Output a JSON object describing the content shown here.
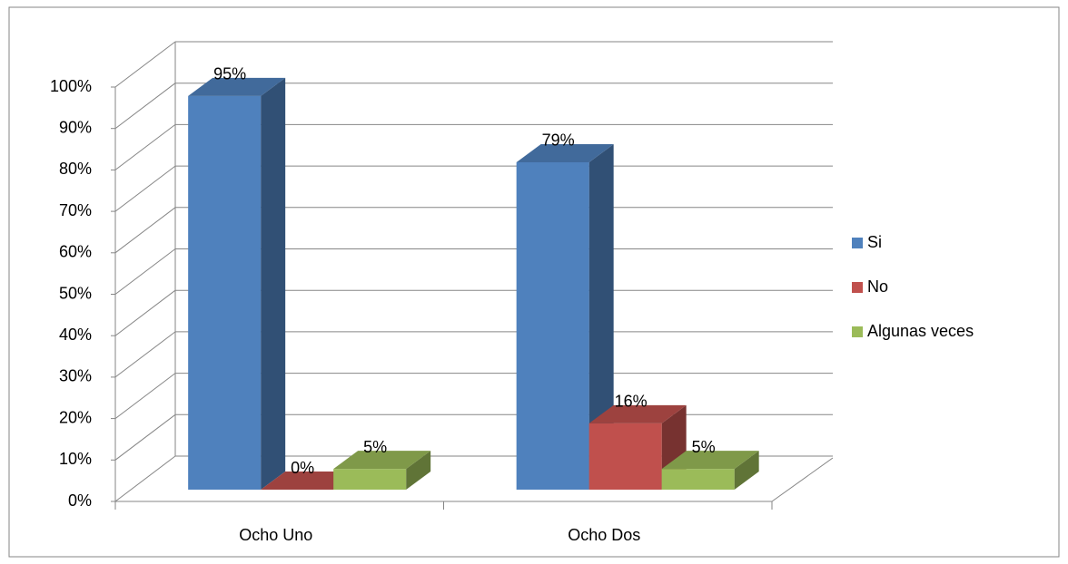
{
  "chart_data": {
    "type": "bar3d",
    "categories": [
      "Ocho Uno",
      "Ocho Dos"
    ],
    "series": [
      {
        "name": "Si",
        "color": "#4f81bd",
        "values": [
          95,
          79
        ],
        "value_labels": [
          "95%",
          "79%"
        ]
      },
      {
        "name": "No",
        "color": "#c0504d",
        "values": [
          0,
          16
        ],
        "value_labels": [
          "0%",
          "16%"
        ]
      },
      {
        "name": "Algunas veces",
        "color": "#9bbb59",
        "values": [
          5,
          5
        ],
        "value_labels": [
          "5%",
          "5%"
        ]
      }
    ],
    "ylim": [
      0,
      100
    ],
    "yticks": [
      {
        "value": 0,
        "label": "0%"
      },
      {
        "value": 10,
        "label": "10%"
      },
      {
        "value": 20,
        "label": "20%"
      },
      {
        "value": 30,
        "label": "30%"
      },
      {
        "value": 40,
        "label": "40%"
      },
      {
        "value": 50,
        "label": "50%"
      },
      {
        "value": 60,
        "label": "60%"
      },
      {
        "value": 70,
        "label": "70%"
      },
      {
        "value": 80,
        "label": "80%"
      },
      {
        "value": 90,
        "label": "90%"
      },
      {
        "value": 100,
        "label": "100%"
      }
    ],
    "grid": true,
    "legend": "right"
  }
}
